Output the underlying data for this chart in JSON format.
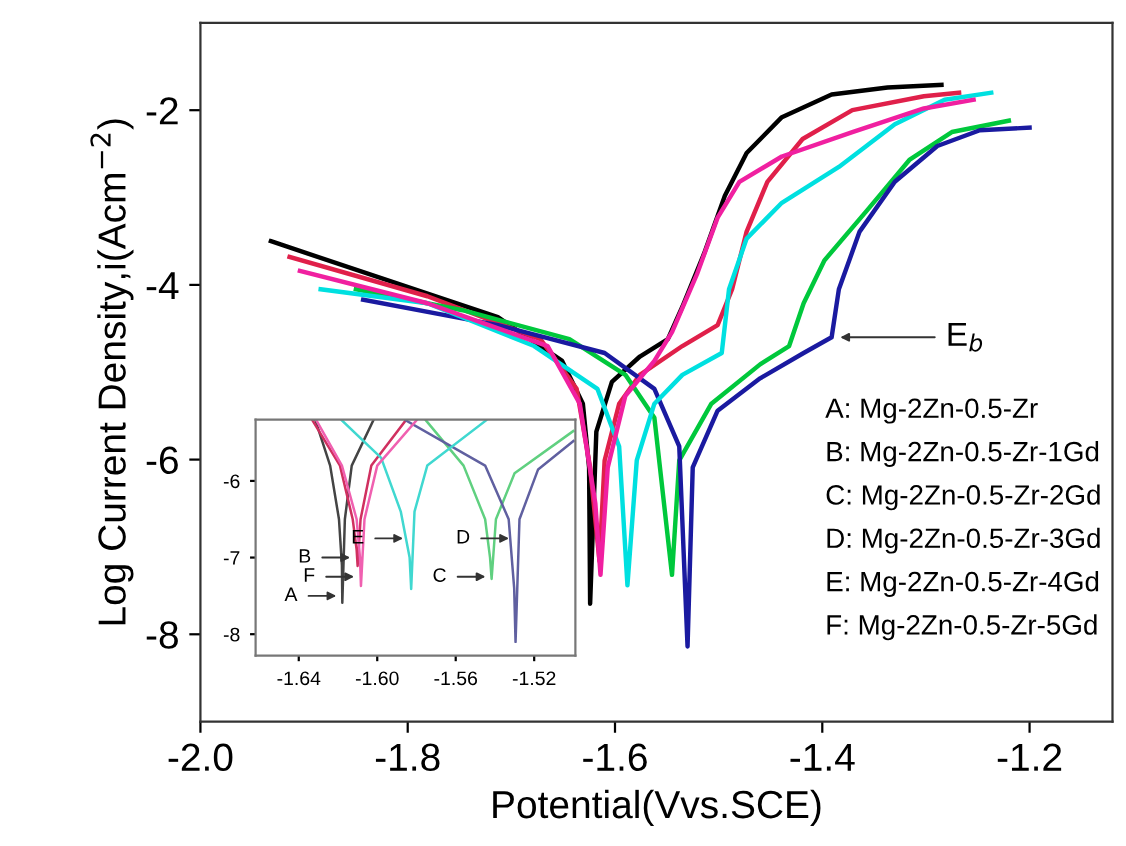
{
  "chart_data": [
    {
      "type": "line",
      "xlabel": "Potential(Vvs.SCE)",
      "ylabel": "Log Current Density,i(Acm$^{−2}$)",
      "xlim": [
        -2.0,
        -1.12
      ],
      "ylim": [
        -9,
        -1
      ],
      "xticks": [
        {
          "value": -2.0,
          "label": "-2.0"
        },
        {
          "value": -1.8,
          "label": "-1.8"
        },
        {
          "value": -1.6,
          "label": "-1.6"
        },
        {
          "value": -1.4,
          "label": "-1.4"
        },
        {
          "value": -1.2,
          "label": "-1.2"
        }
      ],
      "yticks": [
        {
          "value": -2,
          "label": "-2"
        },
        {
          "value": -4,
          "label": "-4"
        },
        {
          "value": -6,
          "label": "-6"
        },
        {
          "value": -8,
          "label": "-8"
        }
      ],
      "grid": false,
      "legend": false,
      "marker": "none",
      "line_style": "solid",
      "series": [
        {
          "color": "#000000",
          "x": [
            -1.932,
            -1.713,
            -1.651,
            -1.631,
            -1.625,
            -1.624,
            -1.618,
            -1.603,
            -1.576,
            -1.549,
            -1.535,
            -1.514,
            -1.494,
            -1.473,
            -1.439,
            -1.391,
            -1.337,
            -1.285
          ],
          "values": [
            -3.5,
            -4.37,
            -4.87,
            -5.36,
            -6.09,
            -7.65,
            -5.68,
            -5.11,
            -4.82,
            -4.62,
            -4.25,
            -3.64,
            -2.98,
            -2.49,
            -2.08,
            -1.82,
            -1.74,
            -1.71
          ]
        },
        {
          "color": "#e0204a",
          "x": [
            -1.914,
            -1.781,
            -1.672,
            -1.637,
            -1.624,
            -1.615,
            -1.61,
            -1.596,
            -1.576,
            -1.535,
            -1.501,
            -1.487,
            -1.473,
            -1.453,
            -1.419,
            -1.371,
            -1.302,
            -1.268
          ],
          "values": [
            -3.68,
            -4.13,
            -4.62,
            -5.19,
            -6.09,
            -7.16,
            -6.01,
            -5.36,
            -5.03,
            -4.7,
            -4.46,
            -4.05,
            -3.39,
            -2.82,
            -2.33,
            -2.0,
            -1.84,
            -1.8
          ]
        },
        {
          "color": "#00c83c",
          "x": [
            -1.85,
            -1.747,
            -1.644,
            -1.59,
            -1.562,
            -1.545,
            -1.538,
            -1.507,
            -1.46,
            -1.432,
            -1.418,
            -1.398,
            -1.357,
            -1.316,
            -1.275,
            -1.22
          ],
          "values": [
            -4.05,
            -4.29,
            -4.62,
            -5.03,
            -5.52,
            -7.32,
            -6.01,
            -5.36,
            -4.91,
            -4.7,
            -4.21,
            -3.72,
            -3.15,
            -2.57,
            -2.25,
            -2.12
          ]
        },
        {
          "color": "#1a1aa0",
          "x": [
            -1.843,
            -1.713,
            -1.61,
            -1.562,
            -1.538,
            -1.53,
            -1.525,
            -1.501,
            -1.46,
            -1.418,
            -1.391,
            -1.384,
            -1.364,
            -1.33,
            -1.289,
            -1.248,
            -1.2
          ],
          "values": [
            -4.17,
            -4.46,
            -4.78,
            -5.19,
            -5.85,
            -8.14,
            -6.09,
            -5.44,
            -5.07,
            -4.78,
            -4.6,
            -4.05,
            -3.39,
            -2.82,
            -2.41,
            -2.23,
            -2.2
          ]
        },
        {
          "color": "#00e0e0",
          "x": [
            -1.884,
            -1.781,
            -1.678,
            -1.617,
            -1.596,
            -1.588,
            -1.579,
            -1.562,
            -1.535,
            -1.497,
            -1.49,
            -1.473,
            -1.439,
            -1.384,
            -1.33,
            -1.282,
            -1.237
          ],
          "values": [
            -4.05,
            -4.21,
            -4.7,
            -5.19,
            -5.85,
            -7.44,
            -6.01,
            -5.36,
            -5.03,
            -4.78,
            -4.05,
            -3.47,
            -3.06,
            -2.65,
            -2.16,
            -1.88,
            -1.8
          ]
        },
        {
          "color": "#f020a0",
          "x": [
            -1.904,
            -1.781,
            -1.665,
            -1.634,
            -1.619,
            -1.614,
            -1.607,
            -1.59,
            -1.562,
            -1.545,
            -1.521,
            -1.501,
            -1.48,
            -1.439,
            -1.371,
            -1.302,
            -1.254
          ],
          "values": [
            -3.84,
            -4.21,
            -4.7,
            -5.36,
            -6.5,
            -7.32,
            -6.09,
            -5.27,
            -4.87,
            -4.54,
            -3.88,
            -3.23,
            -2.82,
            -2.53,
            -2.25,
            -1.98,
            -1.88
          ]
        }
      ],
      "annotations": [
        {
          "text": "E$_{b}$",
          "x": -1.388,
          "y": -4.6
        },
        "A: Mg-2Zn-0.5-Zr",
        "B: Mg-2Zn-0.5-Zr-1Gd",
        "C: Mg-2Zn-0.5-Zr-2Gd",
        "D: Mg-2Zn-0.5-Zr-3Gd",
        "E: Mg-2Zn-0.5-Zr-4Gd",
        "F: Mg-2Zn-0.5-Zr-5Gd"
      ]
    },
    {
      "type": "line",
      "xlim": [
        -1.662,
        -1.499
      ],
      "ylim": [
        -8.28,
        -5.2
      ],
      "xticks": [
        {
          "value": -1.64,
          "label": "-1.64"
        },
        {
          "value": -1.6,
          "label": "-1.60"
        },
        {
          "value": -1.56,
          "label": "-1.56"
        },
        {
          "value": -1.52,
          "label": "-1.52"
        }
      ],
      "yticks": [
        {
          "value": -6,
          "label": "-6"
        },
        {
          "value": -7,
          "label": "-7"
        },
        {
          "value": -8,
          "label": "-8"
        }
      ],
      "grid": false,
      "legend": false,
      "marker": "none",
      "line_style": "solid",
      "series": [
        {
          "color": "#444444",
          "x": [
            -1.6315,
            -1.624,
            -1.6195,
            -1.618,
            -1.6178,
            -1.6165,
            -1.613,
            -1.602
          ],
          "values": [
            -5.21,
            -5.8,
            -6.5,
            -7.1,
            -7.59,
            -6.5,
            -5.8,
            -5.21
          ]
        },
        {
          "color": "#d03060",
          "x": [
            -1.633,
            -1.619,
            -1.6125,
            -1.6105,
            -1.61,
            -1.6085,
            -1.603,
            -1.5855
          ],
          "values": [
            -5.21,
            -5.8,
            -6.5,
            -6.9,
            -7.11,
            -6.5,
            -5.8,
            -5.21
          ]
        },
        {
          "color": "#60d080",
          "x": [
            -1.5752,
            -1.556,
            -1.545,
            -1.5425,
            -1.5417,
            -1.5395,
            -1.53,
            -1.5001
          ],
          "values": [
            -5.21,
            -5.8,
            -6.5,
            -7.0,
            -7.28,
            -6.5,
            -5.9,
            -5.35
          ]
        },
        {
          "color": "#6060a0",
          "x": [
            -1.5855,
            -1.545,
            -1.533,
            -1.5302,
            -1.5295,
            -1.5275,
            -1.518,
            -1.5
          ],
          "values": [
            -5.21,
            -5.8,
            -6.5,
            -7.4,
            -8.1,
            -6.5,
            -5.85,
            -5.48
          ]
        },
        {
          "color": "#40d8d0",
          "x": [
            -1.618,
            -1.598,
            -1.588,
            -1.5835,
            -1.5827,
            -1.581,
            -1.5745,
            -1.5445
          ],
          "values": [
            -5.21,
            -5.7,
            -6.4,
            -7.0,
            -7.41,
            -6.4,
            -5.8,
            -5.21
          ]
        },
        {
          "color": "#f060b0",
          "x": [
            -1.631,
            -1.618,
            -1.6105,
            -1.6088,
            -1.6083,
            -1.6065,
            -1.6,
            -1.58
          ],
          "values": [
            -5.21,
            -5.8,
            -6.5,
            -7.0,
            -7.37,
            -6.5,
            -5.8,
            -5.21
          ]
        }
      ],
      "annotations": [
        {
          "text": "B",
          "x": -1.611,
          "y": -7.0
        },
        {
          "text": "F",
          "x": -1.609,
          "y": -7.25
        },
        {
          "text": "A",
          "x": -1.618,
          "y": -7.5
        },
        {
          "text": "E",
          "x": -1.584,
          "y": -6.75
        },
        {
          "text": "D",
          "x": -1.53,
          "y": -6.75
        },
        {
          "text": "C",
          "x": -1.542,
          "y": -7.25
        }
      ]
    }
  ]
}
